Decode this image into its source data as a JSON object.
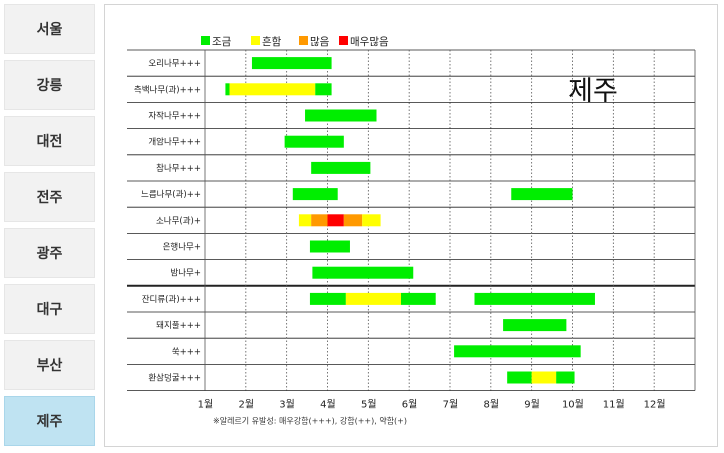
{
  "sidebar": {
    "items": [
      {
        "label": "서울",
        "active": false
      },
      {
        "label": "강릉",
        "active": false
      },
      {
        "label": "대전",
        "active": false
      },
      {
        "label": "전주",
        "active": false
      },
      {
        "label": "광주",
        "active": false
      },
      {
        "label": "대구",
        "active": false
      },
      {
        "label": "부산",
        "active": false
      },
      {
        "label": "제주",
        "active": true
      }
    ],
    "active_color": "#bfe3f2"
  },
  "chart": {
    "city": "제주",
    "footnote": "※알레르기 유발성: 매우강함(+++), 강함(++), 약함(+)"
  },
  "chart_data": {
    "type": "bar",
    "orientation": "horizontal-gantt",
    "x_axis": {
      "ticks": [
        "1월",
        "2월",
        "3월",
        "4월",
        "5월",
        "6월",
        "7월",
        "8월",
        "9월",
        "10월",
        "11월",
        "12월"
      ],
      "range_months": [
        1,
        13
      ]
    },
    "legend": [
      {
        "key": "low",
        "label": "조금",
        "color": "#00ee00"
      },
      {
        "key": "common",
        "label": "흔함",
        "color": "#ffff00"
      },
      {
        "key": "many",
        "label": "많음",
        "color": "#ff9900"
      },
      {
        "key": "very_many",
        "label": "매우많음",
        "color": "#ff0000"
      }
    ],
    "group_separator_after": "밤나무+",
    "rows": [
      {
        "name": "오리나무+++",
        "segments": [
          {
            "start": 2.15,
            "end": 4.1,
            "level": "low"
          }
        ]
      },
      {
        "name": "측백나무(과)+++",
        "segments": [
          {
            "start": 1.5,
            "end": 1.6,
            "level": "low"
          },
          {
            "start": 1.6,
            "end": 3.7,
            "level": "common"
          },
          {
            "start": 3.7,
            "end": 4.1,
            "level": "low"
          }
        ]
      },
      {
        "name": "자작나무+++",
        "segments": [
          {
            "start": 3.45,
            "end": 5.2,
            "level": "low"
          }
        ]
      },
      {
        "name": "개암나무+++",
        "segments": [
          {
            "start": 2.95,
            "end": 4.4,
            "level": "low"
          }
        ]
      },
      {
        "name": "참나무+++",
        "segments": [
          {
            "start": 3.6,
            "end": 5.05,
            "level": "low"
          }
        ]
      },
      {
        "name": "느릅나무(과)++",
        "segments": [
          {
            "start": 3.15,
            "end": 4.25,
            "level": "low"
          },
          {
            "start": 8.5,
            "end": 10.0,
            "level": "low"
          }
        ]
      },
      {
        "name": "소나무(과)+",
        "segments": [
          {
            "start": 3.3,
            "end": 3.6,
            "level": "common"
          },
          {
            "start": 3.6,
            "end": 4.0,
            "level": "many"
          },
          {
            "start": 4.0,
            "end": 4.4,
            "level": "very_many"
          },
          {
            "start": 4.4,
            "end": 4.85,
            "level": "many"
          },
          {
            "start": 4.85,
            "end": 5.3,
            "level": "common"
          }
        ]
      },
      {
        "name": "은행나무+",
        "segments": [
          {
            "start": 3.57,
            "end": 4.55,
            "level": "low"
          }
        ]
      },
      {
        "name": "밤나무+",
        "segments": [
          {
            "start": 3.63,
            "end": 6.1,
            "level": "low"
          }
        ]
      },
      {
        "name": "잔디류(과)+++",
        "segments": [
          {
            "start": 3.57,
            "end": 4.45,
            "level": "low"
          },
          {
            "start": 4.45,
            "end": 5.8,
            "level": "common"
          },
          {
            "start": 5.8,
            "end": 6.65,
            "level": "low"
          },
          {
            "start": 7.6,
            "end": 10.55,
            "level": "low"
          }
        ]
      },
      {
        "name": "돼지풀+++",
        "segments": [
          {
            "start": 8.3,
            "end": 9.85,
            "level": "low"
          }
        ]
      },
      {
        "name": "쑥+++",
        "segments": [
          {
            "start": 7.1,
            "end": 10.2,
            "level": "low"
          }
        ]
      },
      {
        "name": "환삼덩굴+++",
        "segments": [
          {
            "start": 8.4,
            "end": 9.0,
            "level": "low"
          },
          {
            "start": 9.0,
            "end": 9.6,
            "level": "common"
          },
          {
            "start": 9.6,
            "end": 10.05,
            "level": "low"
          }
        ]
      }
    ]
  }
}
